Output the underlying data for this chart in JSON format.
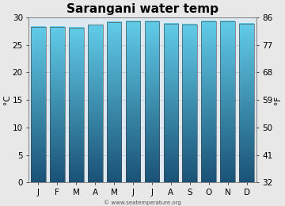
{
  "title": "Sarangani water temp",
  "months": [
    "J",
    "F",
    "M",
    "A",
    "M",
    "J",
    "J",
    "A",
    "S",
    "O",
    "N",
    "D"
  ],
  "values_c": [
    28.3,
    28.2,
    28.1,
    28.6,
    29.1,
    29.2,
    29.2,
    28.8,
    28.7,
    29.3,
    29.3,
    28.8
  ],
  "ylim_c": [
    0,
    30
  ],
  "yticks_c": [
    0,
    5,
    10,
    15,
    20,
    25,
    30
  ],
  "yticks_f": [
    32,
    41,
    50,
    59,
    68,
    77,
    86
  ],
  "ylabel_left": "°C",
  "ylabel_right": "°F",
  "bar_color_top": "#62cce8",
  "bar_color_bottom": "#1a5276",
  "bar_edge_color": "#444444",
  "background_color": "#e8e8e8",
  "plot_bg_color": "#dde8f0",
  "title_fontsize": 11,
  "axis_fontsize": 7.5,
  "watermark": "© www.seatemperature.org"
}
